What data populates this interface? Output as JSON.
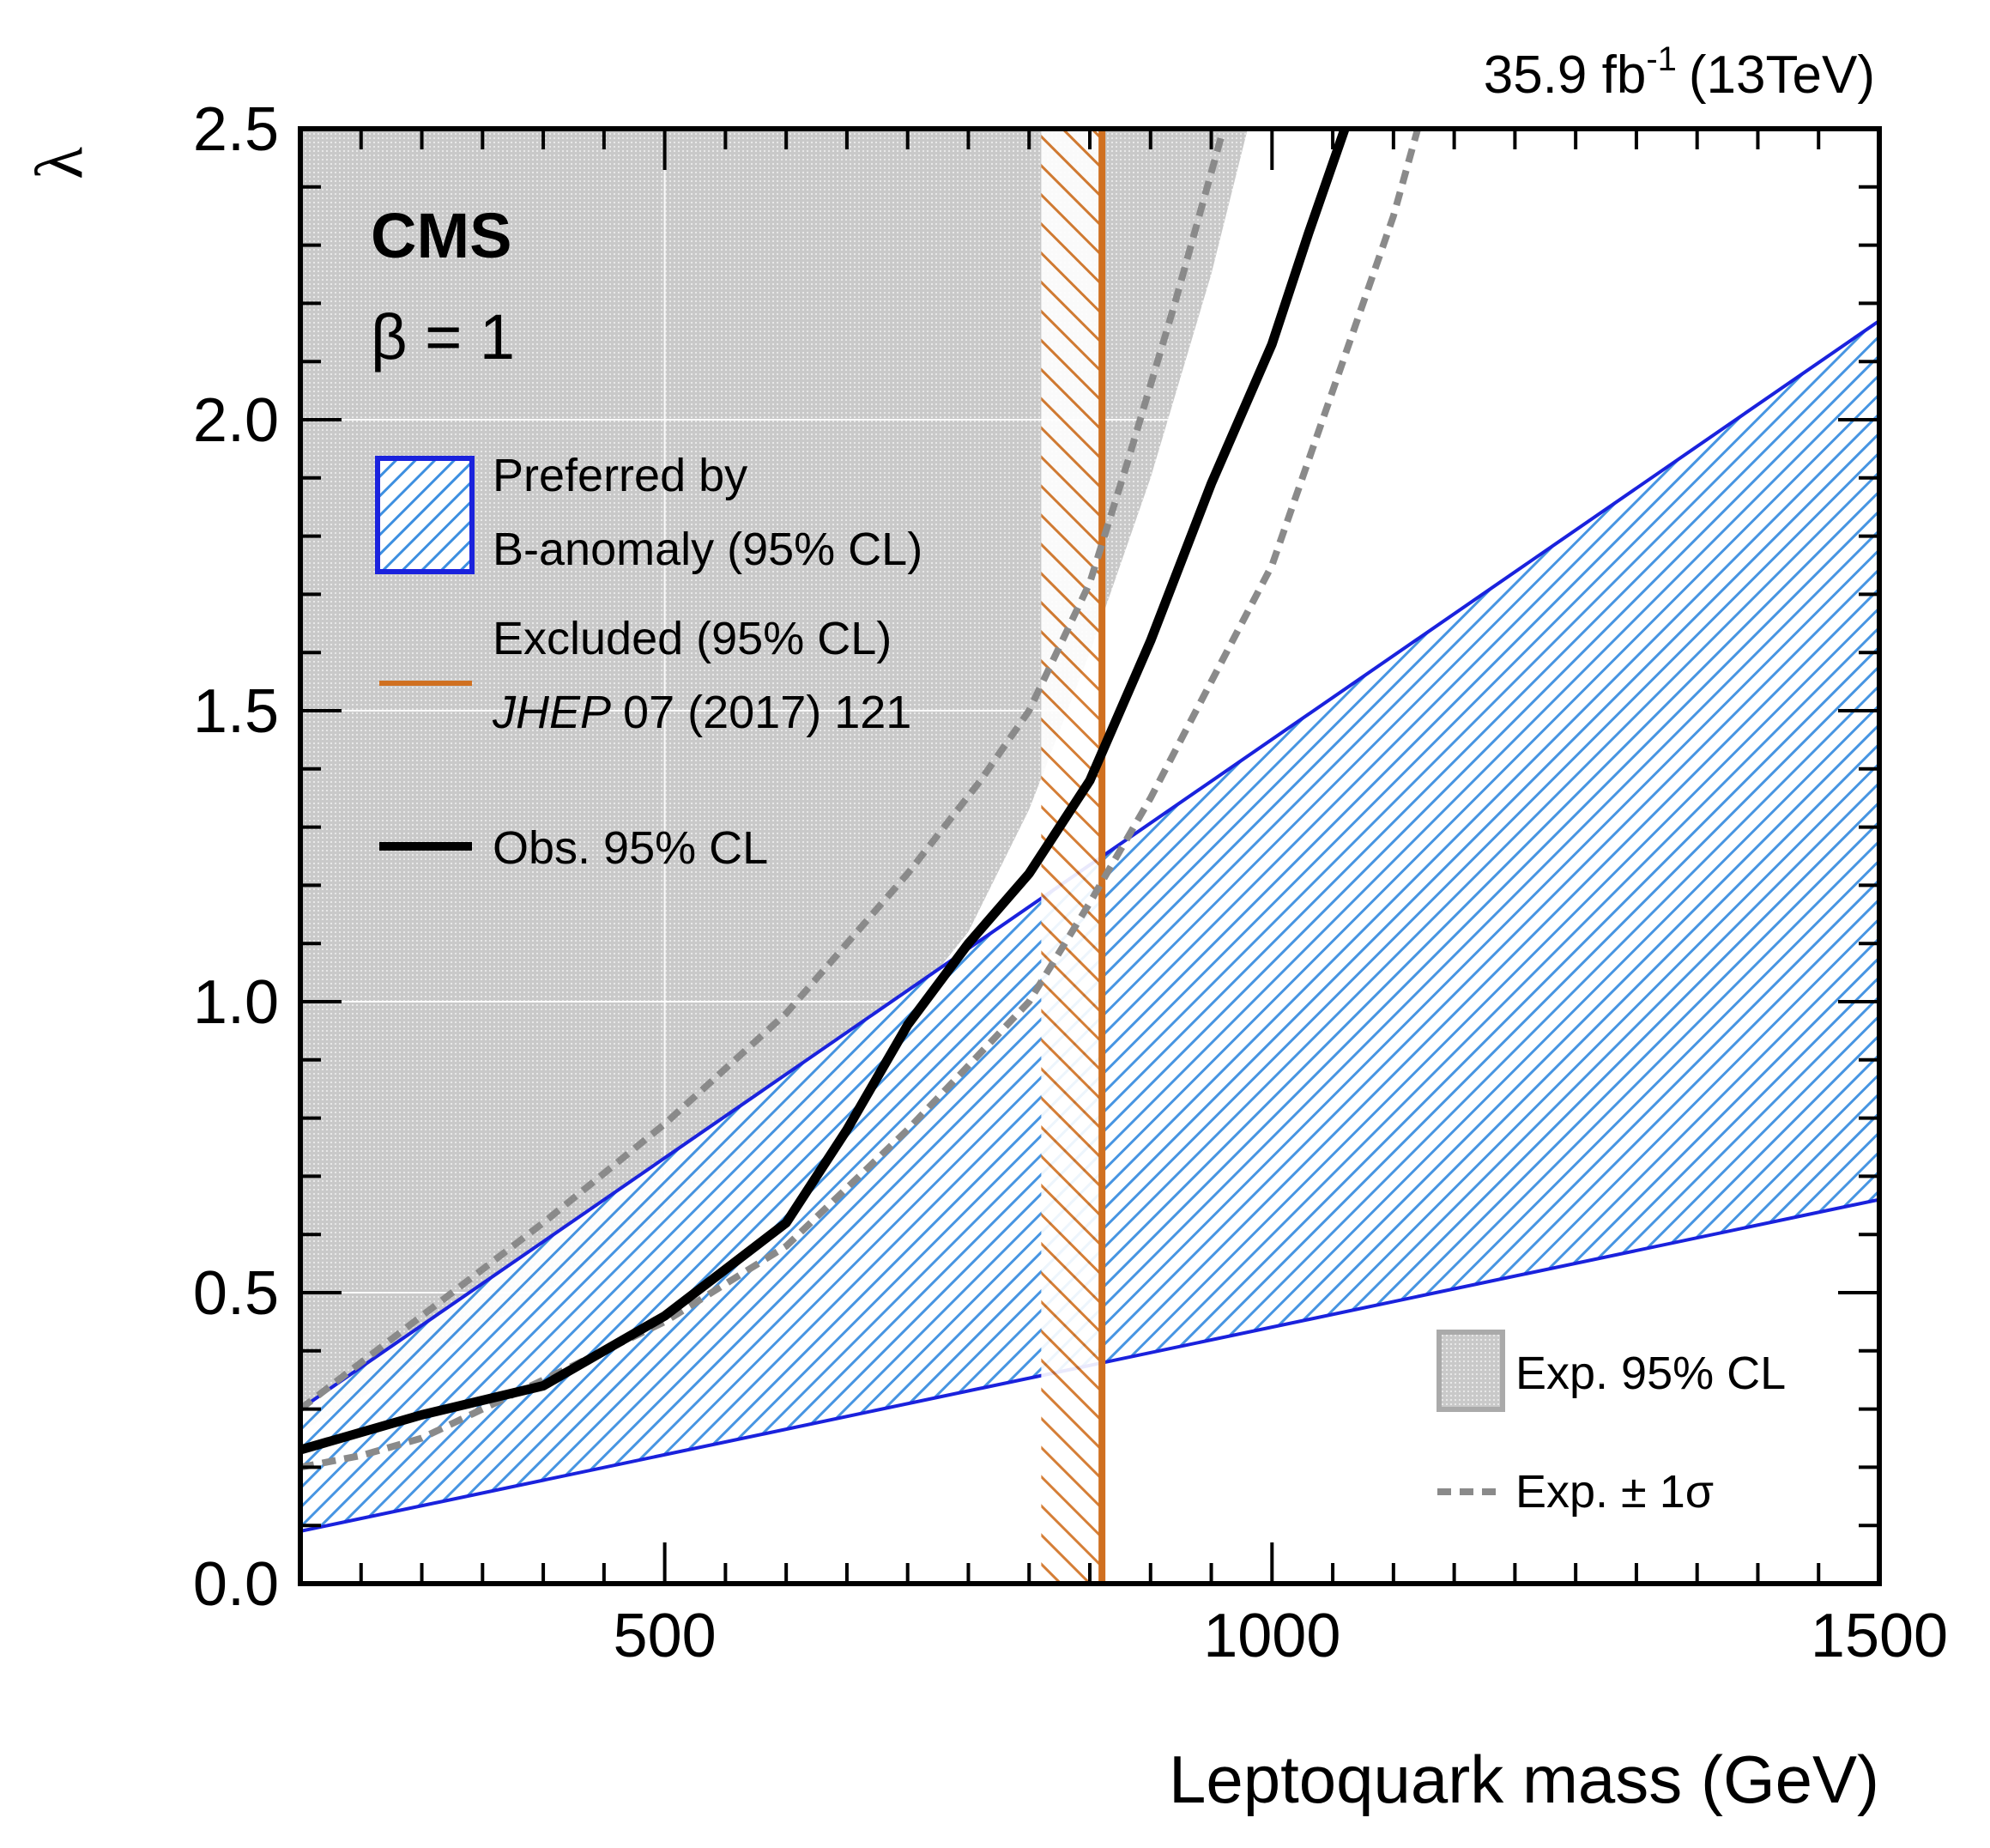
{
  "chart_data": {
    "type": "line",
    "lumi_text": "35.9 fb",
    "lumi_sup": "-1",
    "lumi_energy": "(13TeV)",
    "experiment": "CMS",
    "beta_label": "β = 1",
    "xlabel": "Leptoquark mass (GeV)",
    "ylabel": "λ",
    "xlim": [
      200,
      1500
    ],
    "ylim": [
      0.0,
      2.5
    ],
    "x_ticks": [
      "500",
      "1000",
      "1500"
    ],
    "x_tick_values": [
      500,
      1000,
      1500
    ],
    "y_ticks": [
      "0.0",
      "0.5",
      "1.0",
      "1.5",
      "2.0",
      "2.5"
    ],
    "y_tick_values": [
      0.0,
      0.5,
      1.0,
      1.5,
      2.0,
      2.5
    ],
    "grid": true,
    "legend": {
      "b_anomaly_line1": "Preferred by",
      "b_anomaly_line2": "B-anomaly (95% CL)",
      "excluded_line1": "Excluded (95% CL)",
      "excluded_journal": "JHEP",
      "excluded_ref": "07 (2017) 121",
      "observed": "Obs. 95% CL",
      "expected": "Exp. 95% CL",
      "expected_pm": "Exp. ± 1σ"
    },
    "colors": {
      "b_anomaly_hatch": "#3d8fe0",
      "b_anomaly_edge": "#1a22dd",
      "excluded": "#d07020",
      "observed": "#000000",
      "expected_fill": "#c4c4c4",
      "expected_pm": "#8a8a8a"
    },
    "series": [
      {
        "name": "Obs. 95% CL",
        "x": [
          200,
          300,
          400,
          500,
          600,
          650,
          700,
          750,
          800,
          850,
          900,
          950,
          1000,
          1030,
          1060
        ],
        "y": [
          0.23,
          0.29,
          0.34,
          0.46,
          0.62,
          0.78,
          0.96,
          1.1,
          1.22,
          1.38,
          1.62,
          1.89,
          2.13,
          2.32,
          2.5
        ]
      },
      {
        "name": "Exp. 95% CL",
        "x": [
          200,
          300,
          400,
          500,
          600,
          700,
          750,
          800,
          850,
          900,
          950,
          980
        ],
        "y": [
          0.26,
          0.38,
          0.5,
          0.63,
          0.79,
          0.99,
          1.12,
          1.33,
          1.6,
          1.9,
          2.25,
          2.5
        ]
      },
      {
        "name": "Exp. +1σ",
        "x": [
          200,
          300,
          400,
          500,
          600,
          700,
          760,
          800,
          850,
          880,
          920,
          960
        ],
        "y": [
          0.3,
          0.46,
          0.62,
          0.79,
          0.98,
          1.22,
          1.38,
          1.5,
          1.72,
          1.92,
          2.2,
          2.5
        ]
      },
      {
        "name": "Exp. -1σ",
        "x": [
          200,
          250,
          300,
          400,
          500,
          600,
          700,
          800,
          850,
          900,
          950,
          1000,
          1050,
          1100,
          1120
        ],
        "y": [
          0.2,
          0.22,
          0.25,
          0.35,
          0.45,
          0.58,
          0.78,
          1.0,
          1.17,
          1.35,
          1.55,
          1.75,
          2.05,
          2.35,
          2.5
        ]
      }
    ],
    "b_anomaly_band": {
      "x": [
        200,
        1500
      ],
      "upper": [
        0.3,
        2.17
      ],
      "lower": [
        0.09,
        0.66
      ]
    },
    "excluded_region": {
      "x_min": 810,
      "x_max": 860
    }
  }
}
